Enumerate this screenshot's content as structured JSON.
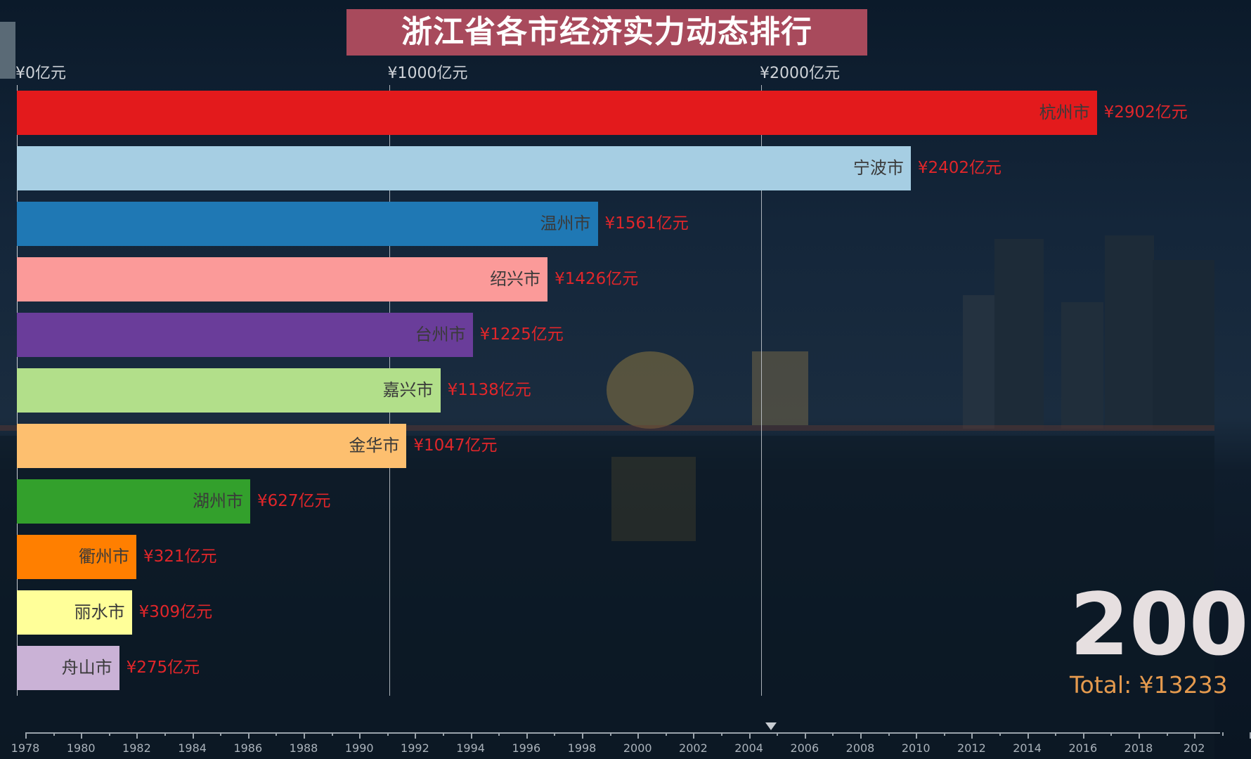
{
  "title": "浙江省各市经济实力动态排行",
  "chart_data": {
    "type": "bar",
    "orientation": "horizontal",
    "title": "浙江省各市经济实力动态排行",
    "x_ticks": [
      "¥0亿元",
      "¥1000亿元",
      "¥2000亿元"
    ],
    "x_tick_values": [
      0,
      1000,
      2000
    ],
    "xlim": [
      0,
      2950
    ],
    "grid": true,
    "unit": "亿元",
    "categories": [
      "杭州市",
      "宁波市",
      "温州市",
      "绍兴市",
      "台州市",
      "嘉兴市",
      "金华市",
      "湖州市",
      "衢州市",
      "丽水市",
      "舟山市"
    ],
    "values": [
      2902,
      2402,
      1561,
      1426,
      1225,
      1138,
      1047,
      627,
      321,
      309,
      275
    ],
    "value_labels": [
      "¥2902亿元",
      "¥2402亿元",
      "¥1561亿元",
      "¥1426亿元",
      "¥1225亿元",
      "¥1138亿元",
      "¥1047亿元",
      "¥627亿元",
      "¥321亿元",
      "¥309亿元",
      "¥275亿元"
    ],
    "colors": [
      "#e31a1c",
      "#a6cee3",
      "#1f78b4",
      "#fb9a99",
      "#6a3d9a",
      "#b2df8a",
      "#fdbf6f",
      "#33a02c",
      "#ff7f00",
      "#ffff99",
      "#cab2d6"
    ]
  },
  "year_display": "200",
  "total_display": "Total: ¥13233",
  "timeline": {
    "labels": [
      "1978",
      "1980",
      "1982",
      "1984",
      "1986",
      "1988",
      "1990",
      "1992",
      "1994",
      "1996",
      "1998",
      "2000",
      "2002",
      "2004",
      "2006",
      "2008",
      "2010",
      "2012",
      "2014",
      "2016",
      "2018",
      "202"
    ],
    "start_year": 1978,
    "current_position": 2004.8
  }
}
